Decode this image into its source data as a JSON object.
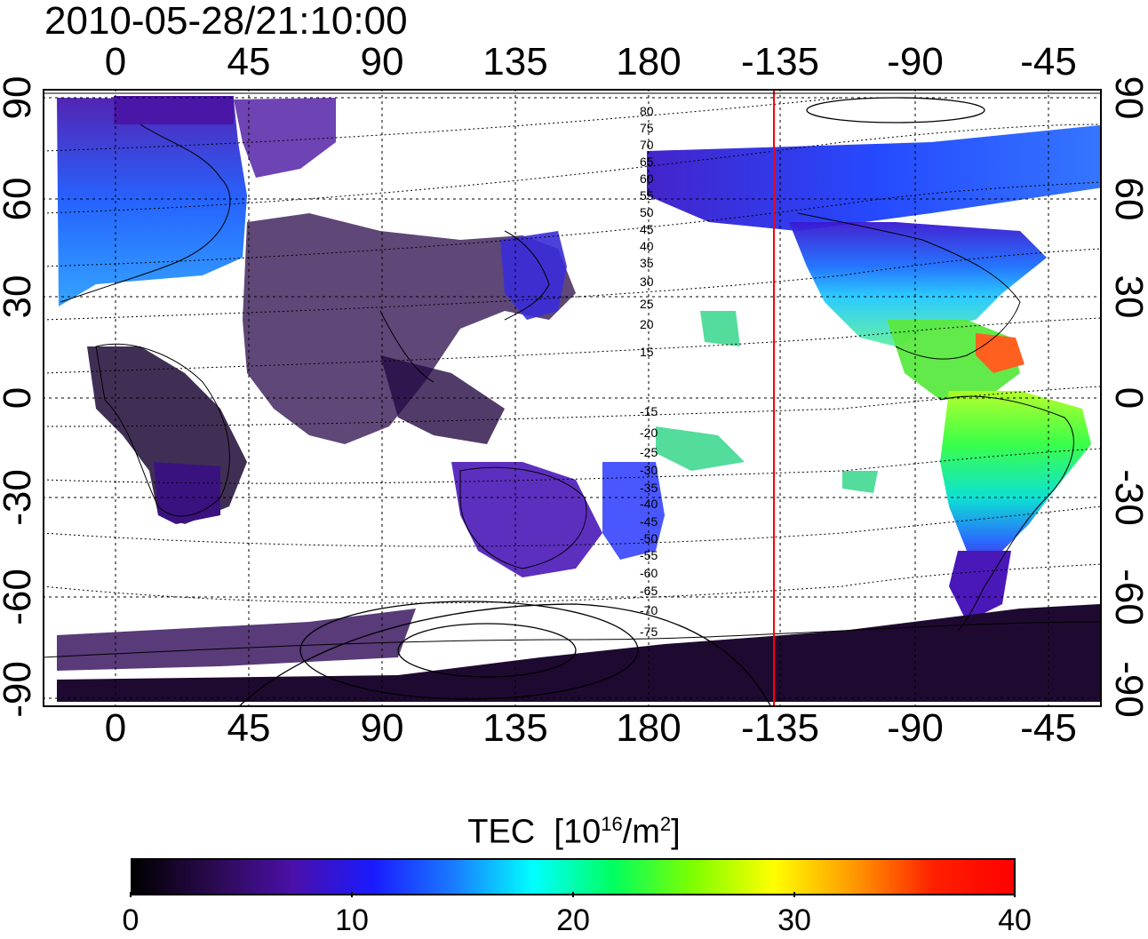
{
  "title": "2010-05-28/21:10:00",
  "axes": {
    "x_ticks": [
      "0",
      "45",
      "90",
      "135",
      "180",
      "-135",
      "-90",
      "-45"
    ],
    "y_ticks": [
      "90",
      "60",
      "30",
      "0",
      "-30",
      "-60",
      "-90"
    ]
  },
  "contour_labels": [
    "80",
    "75",
    "70",
    "65",
    "60",
    "55",
    "50",
    "45",
    "40",
    "35",
    "30",
    "25",
    "20",
    "15",
    "-15",
    "-20",
    "-25",
    "-30",
    "-35",
    "-40",
    "-45",
    "-50",
    "-55",
    "-60",
    "-65",
    "-70",
    "-75"
  ],
  "colorbar": {
    "label": "TEC",
    "unit_base": "10",
    "unit_exp": "16",
    "unit_tail": "/m",
    "unit_tail_exp": "2",
    "ticks": [
      "0",
      "10",
      "20",
      "30",
      "40"
    ],
    "range": [
      0,
      40
    ],
    "colors": [
      "#000000",
      "#2a0a4f",
      "#4a10a8",
      "#1a1aff",
      "#1a7aff",
      "#00ffff",
      "#00ff60",
      "#7fff00",
      "#ffff00",
      "#ff9900",
      "#ff2000",
      "#ff0000"
    ]
  },
  "marker_line": {
    "longitude": -137,
    "color": "#ff0000"
  }
}
